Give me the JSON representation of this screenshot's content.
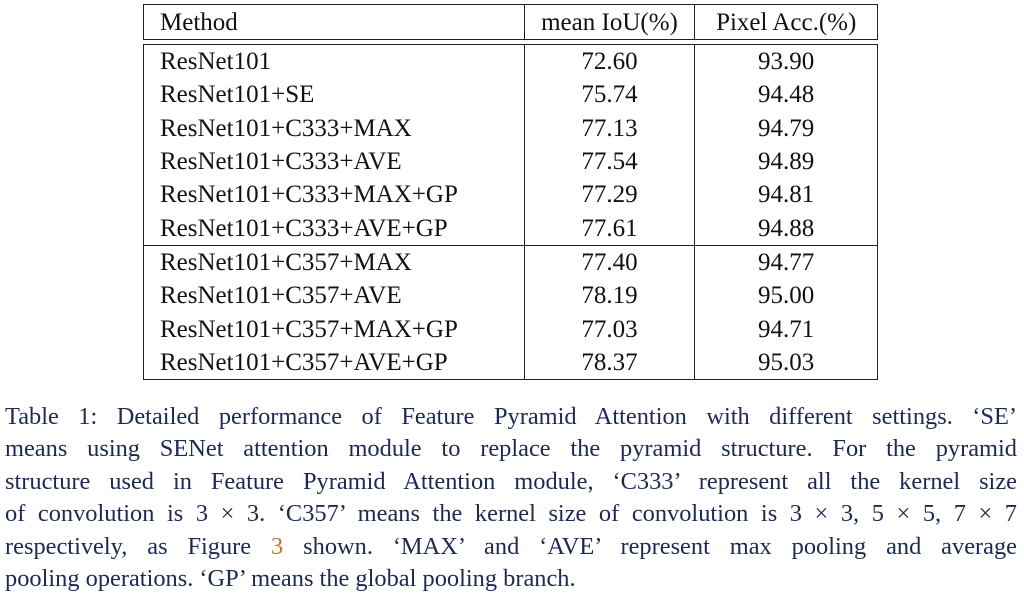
{
  "table": {
    "headers": {
      "method": "Method",
      "miou": "mean IoU(%)",
      "pacc": "Pixel Acc.(%)"
    },
    "group1": [
      {
        "method": "ResNet101",
        "miou": "72.60",
        "pacc": "93.90"
      },
      {
        "method": "ResNet101+SE",
        "miou": "75.74",
        "pacc": "94.48"
      },
      {
        "method": "ResNet101+C333+MAX",
        "miou": "77.13",
        "pacc": "94.79"
      },
      {
        "method": "ResNet101+C333+AVE",
        "miou": "77.54",
        "pacc": "94.89"
      },
      {
        "method": "ResNet101+C333+MAX+GP",
        "miou": "77.29",
        "pacc": "94.81"
      },
      {
        "method": "ResNet101+C333+AVE+GP",
        "miou": "77.61",
        "pacc": "94.88"
      }
    ],
    "group2": [
      {
        "method": "ResNet101+C357+MAX",
        "miou": "77.40",
        "pacc": "94.77"
      },
      {
        "method": "ResNet101+C357+AVE",
        "miou": "78.19",
        "pacc": "95.00"
      },
      {
        "method": "ResNet101+C357+MAX+GP",
        "miou": "77.03",
        "pacc": "94.71"
      },
      {
        "method": "ResNet101+C357+AVE+GP",
        "miou": "78.37",
        "pacc": "95.03"
      }
    ]
  },
  "caption": {
    "line1": "Table 1: Detailed performance of Feature Pyramid Attention with different settings. ‘SE’",
    "line2": "means using SENet attention module to replace the pyramid structure. For the pyramid",
    "line3": "structure used in Feature Pyramid Attention module, ‘C333’ represent all the kernel size",
    "line4": "of convolution is 3 × 3. ‘C357’ means the kernel size of convolution is 3 × 3, 5 × 5, 7 × 7",
    "line5_pre": "respectively, as Figure ",
    "line5_ref": "3",
    "line5_post": " shown. ‘MAX’ and ‘AVE’ represent max pooling and average",
    "line6": "pooling operations. ‘GP’ means the global pooling branch."
  }
}
